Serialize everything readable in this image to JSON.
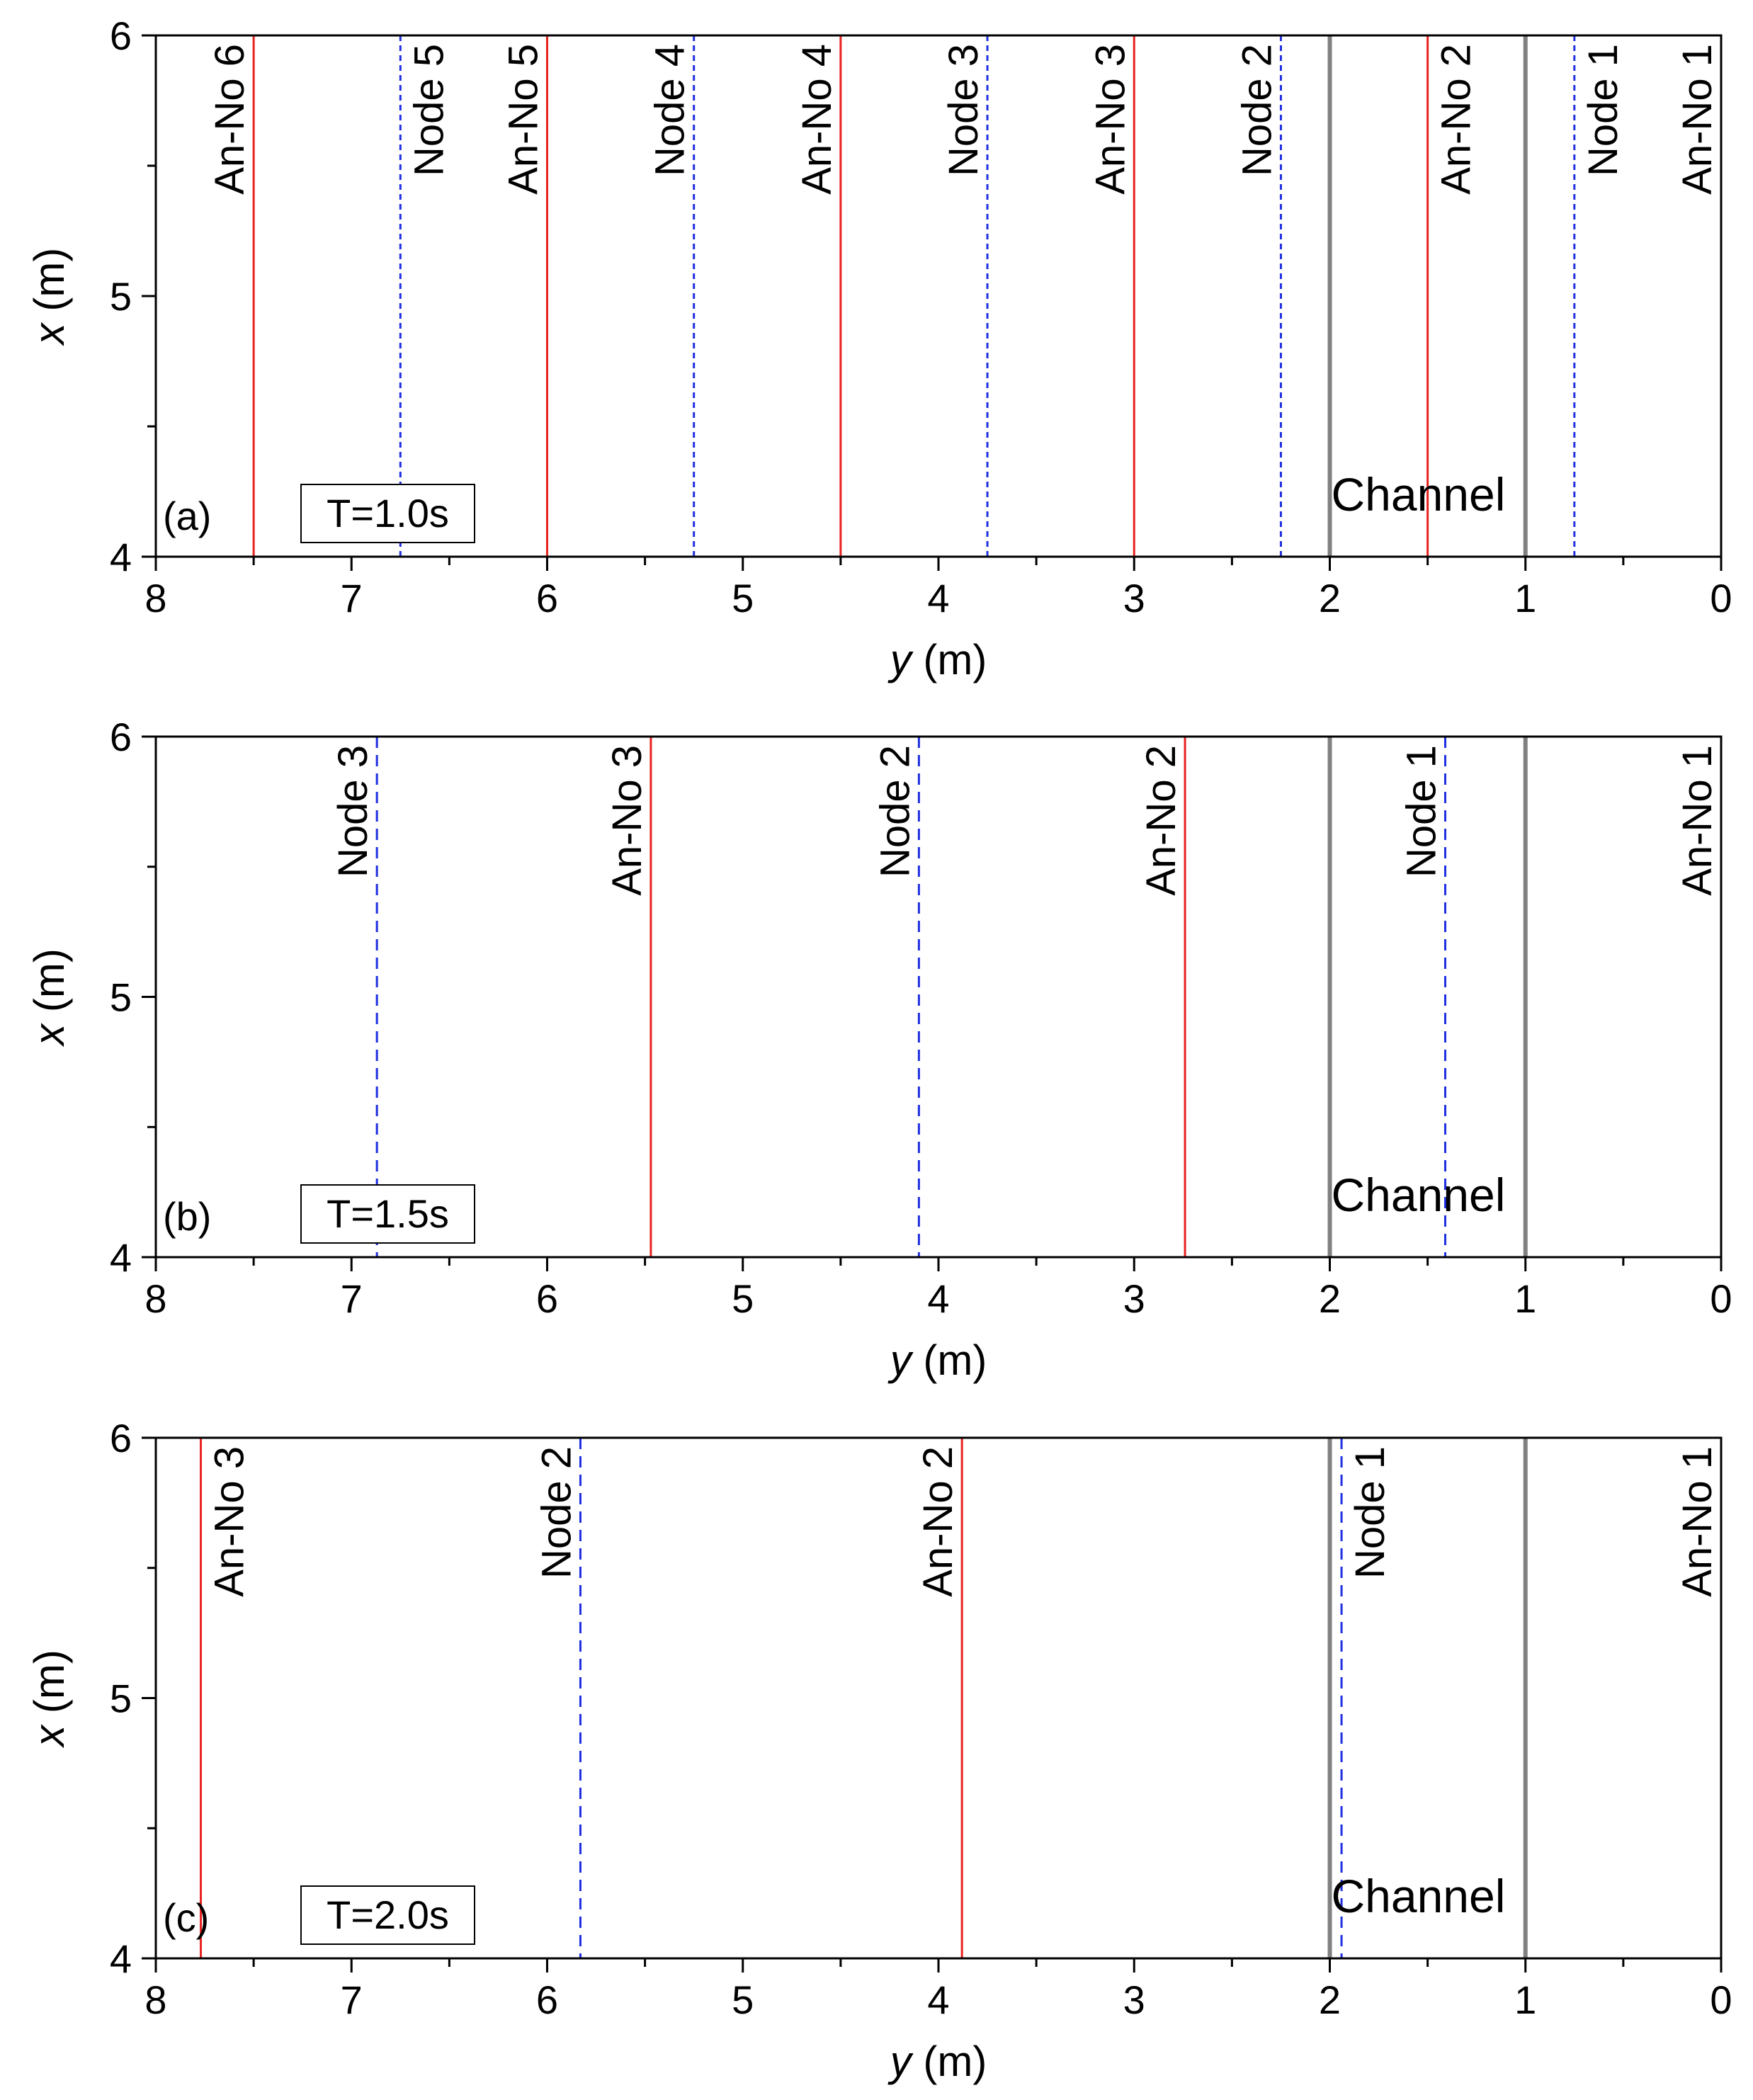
{
  "chart_data": [
    {
      "type": "line",
      "panel_label": "(a)",
      "period_label": "T=1.0s",
      "channel_label": "Channel",
      "xlabel": {
        "var": "y",
        "unit": " (m)"
      },
      "ylabel": {
        "var": "x",
        "unit": " (m)"
      },
      "xlim": [
        8,
        0
      ],
      "ylim": [
        4,
        6
      ],
      "x_ticks": [
        "8",
        "7",
        "6",
        "5",
        "4",
        "3",
        "2",
        "1",
        "0"
      ],
      "y_ticks": [
        "4",
        "5",
        "6"
      ],
      "channel_walls": [
        2,
        1
      ],
      "lines": [
        {
          "name": "An-No 6",
          "y": 7.5,
          "kind": "antinode",
          "label_side": "left"
        },
        {
          "name": "Node 5",
          "y": 6.75,
          "kind": "node",
          "label_side": "right"
        },
        {
          "name": "An-No 5",
          "y": 6.0,
          "kind": "antinode",
          "label_side": "left"
        },
        {
          "name": "Node 4",
          "y": 5.25,
          "kind": "node",
          "label_side": "left"
        },
        {
          "name": "An-No 4",
          "y": 4.5,
          "kind": "antinode",
          "label_side": "left"
        },
        {
          "name": "Node 3",
          "y": 3.75,
          "kind": "node",
          "label_side": "left"
        },
        {
          "name": "An-No 3",
          "y": 3.0,
          "kind": "antinode",
          "label_side": "left"
        },
        {
          "name": "Node 2",
          "y": 2.25,
          "kind": "node",
          "label_side": "left"
        },
        {
          "name": "An-No 2",
          "y": 1.5,
          "kind": "antinode",
          "label_side": "right"
        },
        {
          "name": "Node 1",
          "y": 0.75,
          "kind": "node",
          "label_side": "right"
        },
        {
          "name": "An-No 1",
          "y": 0.0,
          "kind": "antinode",
          "label_side": "left"
        }
      ]
    },
    {
      "type": "line",
      "panel_label": "(b)",
      "period_label": "T=1.5s",
      "channel_label": "Channel",
      "xlabel": {
        "var": "y",
        "unit": " (m)"
      },
      "ylabel": {
        "var": "x",
        "unit": " (m)"
      },
      "xlim": [
        8,
        0
      ],
      "ylim": [
        4,
        6
      ],
      "x_ticks": [
        "8",
        "7",
        "6",
        "5",
        "4",
        "3",
        "2",
        "1",
        "0"
      ],
      "y_ticks": [
        "4",
        "5",
        "6"
      ],
      "channel_walls": [
        2,
        1
      ],
      "lines": [
        {
          "name": "Node 3",
          "y": 6.87,
          "kind": "node",
          "label_side": "left"
        },
        {
          "name": "An-No 3",
          "y": 5.47,
          "kind": "antinode",
          "label_side": "left"
        },
        {
          "name": "Node 2",
          "y": 4.1,
          "kind": "node",
          "label_side": "left"
        },
        {
          "name": "An-No 2",
          "y": 2.74,
          "kind": "antinode",
          "label_side": "left"
        },
        {
          "name": "Node 1",
          "y": 1.41,
          "kind": "node",
          "label_side": "left"
        },
        {
          "name": "An-No 1",
          "y": 0.0,
          "kind": "antinode",
          "label_side": "left"
        }
      ]
    },
    {
      "type": "line",
      "panel_label": "(c)",
      "period_label": "T=2.0s",
      "channel_label": "Channel",
      "xlabel": {
        "var": "y",
        "unit": " (m)"
      },
      "ylabel": {
        "var": "x",
        "unit": " (m)"
      },
      "xlim": [
        8,
        0
      ],
      "ylim": [
        4,
        6
      ],
      "x_ticks": [
        "8",
        "7",
        "6",
        "5",
        "4",
        "3",
        "2",
        "1",
        "0"
      ],
      "y_ticks": [
        "4",
        "5",
        "6"
      ],
      "channel_walls": [
        2,
        1
      ],
      "lines": [
        {
          "name": "An-No 3",
          "y": 7.77,
          "kind": "antinode",
          "label_side": "right"
        },
        {
          "name": "Node 2",
          "y": 5.83,
          "kind": "node",
          "label_side": "left"
        },
        {
          "name": "An-No 2",
          "y": 3.88,
          "kind": "antinode",
          "label_side": "left"
        },
        {
          "name": "Node 1",
          "y": 1.94,
          "kind": "node",
          "label_side": "right"
        },
        {
          "name": "An-No 1",
          "y": 0.0,
          "kind": "antinode",
          "label_side": "left"
        }
      ]
    }
  ],
  "colors": {
    "antinode": "#e8221f",
    "node": "#1f2fe0",
    "channel_wall": "#808080",
    "axis": "#000000"
  }
}
